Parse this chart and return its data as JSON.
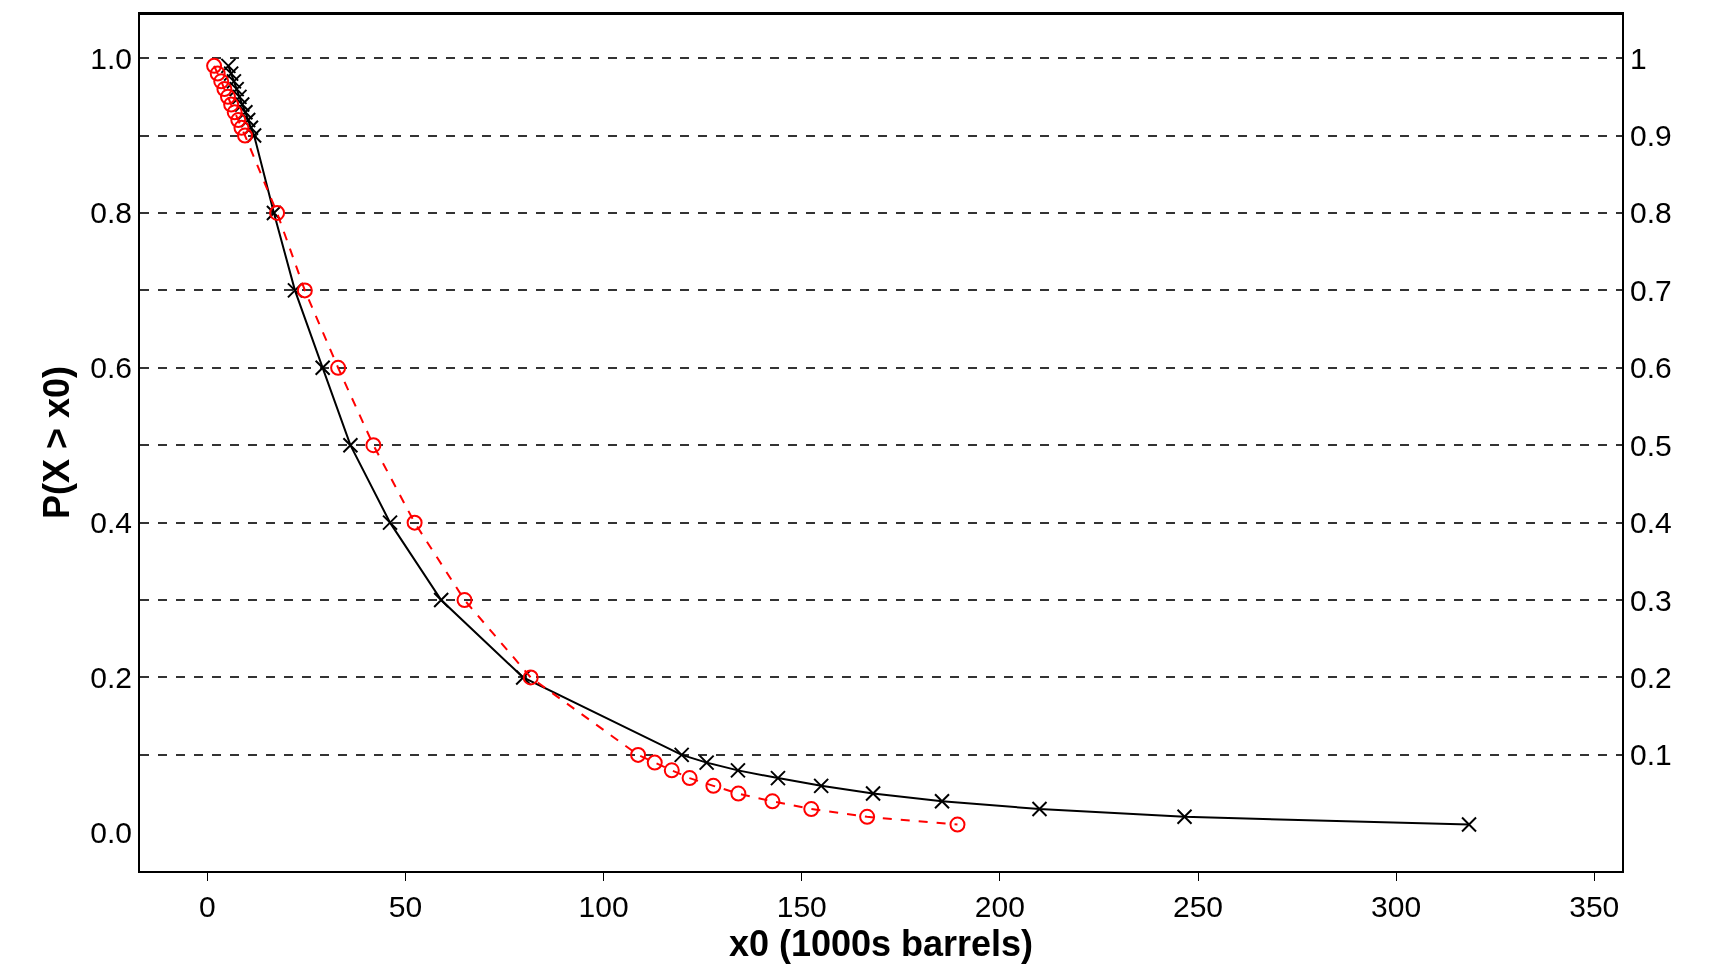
{
  "chart_data": {
    "type": "line",
    "xlabel": "x0 (1000s barrels)",
    "ylabel": "P(X > x0)",
    "xlim": [
      -17,
      357
    ],
    "xticks": [
      0,
      50,
      100,
      150,
      200,
      250,
      300,
      350
    ],
    "ylim": [
      -0.05,
      1.057
    ],
    "yticks": [
      {
        "value": 0,
        "label": "0.0"
      },
      0.2,
      0.4,
      0.6,
      0.8,
      {
        "value": 1,
        "label": "1.0"
      }
    ],
    "y2lim": [
      -0.05,
      1.057
    ],
    "y2ticks": [
      1,
      0.9,
      0.8,
      0.7,
      0.6,
      0.5,
      0.4,
      0.3,
      0.2,
      0.1
    ],
    "grid": "y",
    "legend": false,
    "series": [
      {
        "color": "#000000",
        "marker": "cross",
        "line_style": "solid",
        "x": [
          5.3,
          6.0,
          6.7,
          7.4,
          8.1,
          8.8,
          9.6,
          10.3,
          11.0,
          11.8,
          16.8,
          22.1,
          29.1,
          36.1,
          46.1,
          59.0,
          79.7,
          119.7,
          126.0,
          133.9,
          144.0,
          154.9,
          168.0,
          185.4,
          210.0,
          246.6,
          318.4
        ],
        "values": [
          0.99,
          0.98,
          0.97,
          0.96,
          0.95,
          0.94,
          0.93,
          0.92,
          0.91,
          0.9,
          0.8,
          0.7,
          0.6,
          0.5,
          0.4,
          0.3,
          0.2,
          0.1,
          0.09,
          0.08,
          0.07,
          0.06,
          0.05,
          0.04,
          0.03,
          0.02,
          0.01
        ]
      },
      {
        "color": "#ff0000",
        "marker": "circle",
        "line_style": "dashed",
        "x": [
          1.7,
          2.6,
          3.5,
          4.3,
          5.2,
          6.0,
          6.9,
          7.8,
          8.6,
          9.5,
          17.6,
          24.6,
          33.0,
          41.9,
          52.3,
          64.9,
          81.6,
          108.7,
          112.9,
          117.2,
          121.7,
          127.7,
          134.0,
          142.6,
          152.4,
          166.5,
          189.3
        ],
        "values": [
          0.99,
          0.98,
          0.97,
          0.96,
          0.95,
          0.94,
          0.93,
          0.92,
          0.91,
          0.9,
          0.8,
          0.7,
          0.6,
          0.5,
          0.4,
          0.3,
          0.2,
          0.1,
          0.09,
          0.08,
          0.07,
          0.06,
          0.05,
          0.04,
          0.03,
          0.02,
          0.01
        ]
      }
    ]
  }
}
